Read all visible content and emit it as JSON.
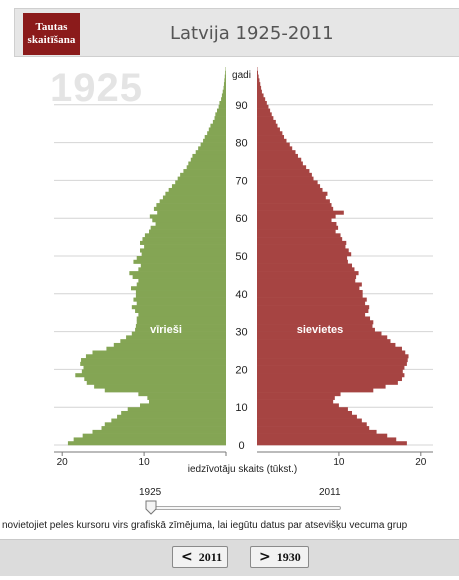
{
  "header": {
    "logo_text": "Tautas skaitīšana",
    "title": "Latvija 1925-2011"
  },
  "current_year": "1925",
  "chart_data": {
    "type": "population-pyramid",
    "title": "Latvija 1925-2011",
    "year": "1925",
    "age_axis_label": "gadi",
    "age_ticks": [
      0,
      10,
      20,
      30,
      40,
      50,
      60,
      70,
      80,
      90
    ],
    "x_label": "iedzīvotāju skaits (tūkst.)",
    "x_ticks": [
      "20",
      "10",
      "0",
      "10",
      "20"
    ],
    "xlim": [
      0,
      21
    ],
    "ages": [
      0,
      1,
      2,
      3,
      4,
      5,
      6,
      7,
      8,
      9,
      10,
      11,
      12,
      13,
      14,
      15,
      16,
      17,
      18,
      19,
      20,
      21,
      22,
      23,
      24,
      25,
      26,
      27,
      28,
      29,
      30,
      31,
      32,
      33,
      34,
      35,
      36,
      37,
      38,
      39,
      40,
      41,
      42,
      43,
      44,
      45,
      46,
      47,
      48,
      49,
      50,
      51,
      52,
      53,
      54,
      55,
      56,
      57,
      58,
      59,
      60,
      61,
      62,
      63,
      64,
      65,
      66,
      67,
      68,
      69,
      70,
      71,
      72,
      73,
      74,
      75,
      76,
      77,
      78,
      79,
      80,
      81,
      82,
      83,
      84,
      85,
      86,
      87,
      88,
      89,
      90,
      91,
      92,
      93,
      94,
      95,
      96,
      97,
      98,
      99
    ],
    "series": [
      {
        "name": "vīrieši",
        "color": "#84a554",
        "values": [
          19.3,
          18.6,
          17.5,
          16.3,
          15.2,
          14.8,
          14.0,
          13.3,
          12.8,
          12.0,
          10.5,
          9.4,
          9.6,
          10.7,
          14.8,
          16.1,
          17.0,
          17.3,
          18.4,
          17.6,
          17.4,
          17.8,
          17.7,
          17.1,
          16.3,
          14.6,
          13.7,
          12.9,
          12.2,
          11.5,
          11.1,
          11.0,
          10.9,
          10.9,
          10.7,
          11.1,
          11.5,
          10.9,
          11.3,
          11.0,
          11.0,
          11.6,
          10.9,
          10.7,
          11.4,
          11.8,
          10.7,
          10.4,
          11.3,
          10.9,
          10.3,
          10.5,
          10.0,
          10.5,
          10.2,
          9.9,
          9.4,
          9.2,
          8.6,
          9.0,
          9.3,
          8.4,
          8.8,
          8.5,
          8.1,
          7.7,
          7.4,
          7.0,
          6.6,
          6.2,
          5.9,
          5.6,
          5.2,
          4.8,
          4.6,
          4.3,
          4.1,
          3.7,
          3.4,
          3.1,
          2.8,
          2.6,
          2.3,
          2.1,
          1.9,
          1.6,
          1.4,
          1.3,
          1.1,
          0.9,
          0.8,
          0.6,
          0.5,
          0.4,
          0.3,
          0.25,
          0.2,
          0.15,
          0.1,
          0.05
        ]
      },
      {
        "name": "sievietes",
        "color": "#a64442",
        "values": [
          18.3,
          17.0,
          15.9,
          14.6,
          13.7,
          13.4,
          12.8,
          12.2,
          11.6,
          11.1,
          10.0,
          9.3,
          9.5,
          10.2,
          14.2,
          15.7,
          17.2,
          17.7,
          18.0,
          17.8,
          18.0,
          18.3,
          18.4,
          18.5,
          18.1,
          17.7,
          16.9,
          16.3,
          15.9,
          15.2,
          14.4,
          14.1,
          14.2,
          13.8,
          13.2,
          13.6,
          13.7,
          13.2,
          13.4,
          12.9,
          12.9,
          12.5,
          12.8,
          12.0,
          12.1,
          12.4,
          11.9,
          11.6,
          11.1,
          11.0,
          11.5,
          11.2,
          10.8,
          10.9,
          10.4,
          10.2,
          9.6,
          9.9,
          9.7,
          9.1,
          9.6,
          10.6,
          9.3,
          9.1,
          8.9,
          8.4,
          8.6,
          8.0,
          7.7,
          7.4,
          6.9,
          6.7,
          6.4,
          6.0,
          5.6,
          5.4,
          5.0,
          4.7,
          4.3,
          4.0,
          3.6,
          3.3,
          3.1,
          2.8,
          2.5,
          2.3,
          2.0,
          1.8,
          1.6,
          1.4,
          1.2,
          1.0,
          0.8,
          0.6,
          0.5,
          0.4,
          0.3,
          0.2,
          0.12,
          0.05
        ]
      }
    ]
  },
  "slider": {
    "min_label": "1925",
    "max_label": "2011",
    "value": "1925"
  },
  "hint_text": "novietojiet peles kursoru virs grafiskā zīmējuma, lai iegūtu datus par atsevišķu vecuma grup",
  "nav": {
    "prev_label": "2011",
    "next_label": "1930"
  }
}
